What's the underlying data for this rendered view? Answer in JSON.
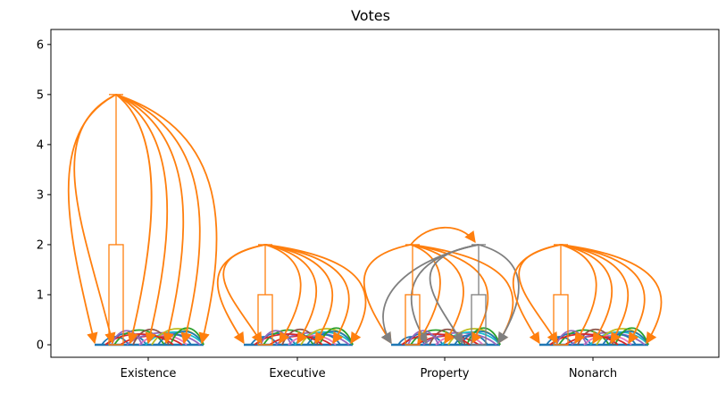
{
  "chart_data": {
    "type": "box-arc",
    "title": "Votes",
    "xlabel": "",
    "ylabel": "",
    "categories": [
      "Existence",
      "Executive",
      "Property",
      "Nonarch"
    ],
    "ylim": [
      -0.25,
      6.3
    ],
    "yticks": [
      0,
      1,
      2,
      3,
      4,
      5,
      6
    ],
    "grid": false,
    "colors": {
      "orange": "#ff7f0e",
      "gray": "#7f7f7f",
      "blue": "#1f77b4",
      "green": "#2ca02c",
      "red": "#d62728",
      "purple": "#9467bd",
      "brown": "#8c564b",
      "pink": "#e377c2",
      "cyan": "#17becf",
      "olive": "#bcbd22"
    },
    "boxes": [
      {
        "category": "Existence",
        "color": "orange",
        "min": 0,
        "q1": 0,
        "median": 0,
        "q3": 2,
        "max": 5
      },
      {
        "category": "Executive",
        "color": "orange",
        "min": 0,
        "q1": 0,
        "median": 0,
        "q3": 1,
        "max": 2
      },
      {
        "category": "Property",
        "color": "orange",
        "min": 0,
        "q1": 0,
        "median": 0,
        "q3": 1,
        "max": 2
      },
      {
        "category": "Property",
        "color": "gray",
        "min": 0,
        "q1": 0,
        "median": 0,
        "q3": 1,
        "max": 2
      },
      {
        "category": "Nonarch",
        "color": "orange",
        "min": 0,
        "q1": 0,
        "median": 0,
        "q3": 1,
        "max": 2
      }
    ],
    "arc_groups": [
      {
        "category": "Existence",
        "color": "orange",
        "from_y": 5,
        "to_y": 0,
        "targets": 7
      },
      {
        "category": "Executive",
        "color": "orange",
        "from_y": 2,
        "to_y": 0,
        "targets": 7
      },
      {
        "category": "Property",
        "color": "orange",
        "from_y": 2,
        "to_y": 0,
        "targets": 5
      },
      {
        "category": "Property",
        "color": "gray",
        "from_y": 2,
        "to_y": 0,
        "targets": 4
      },
      {
        "category": "Nonarch",
        "color": "orange",
        "from_y": 2,
        "to_y": 0,
        "targets": 7
      }
    ]
  }
}
